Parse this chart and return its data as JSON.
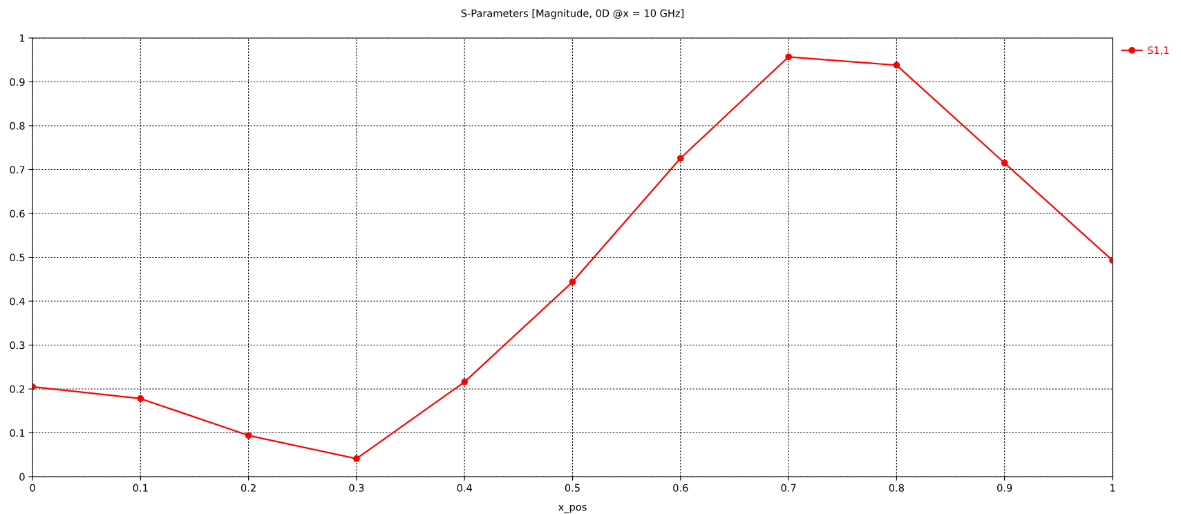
{
  "chart_data": {
    "type": "line",
    "title": "S-Parameters [Magnitude, 0D @x = 10 GHz]",
    "xlabel": "x_pos",
    "x": [
      0,
      0.1,
      0.2,
      0.3,
      0.4,
      0.5,
      0.6,
      0.7,
      0.8,
      0.9,
      1
    ],
    "series": [
      {
        "name": "S1,1",
        "color": "#ff0000",
        "values": [
          0.205,
          0.178,
          0.094,
          0.041,
          0.216,
          0.444,
          0.726,
          0.957,
          0.938,
          0.715,
          0.493
        ]
      }
    ],
    "xlim": [
      0,
      1
    ],
    "xticks": [
      0,
      0.1,
      0.2,
      0.3,
      0.4,
      0.5,
      0.6,
      0.7,
      0.8,
      0.9,
      1
    ],
    "ylim": [
      0,
      1
    ],
    "yticks": [
      0,
      0.1,
      0.2,
      0.3,
      0.4,
      0.5,
      0.6,
      0.7,
      0.8,
      0.9,
      1
    ],
    "grid": true,
    "legend": "top right",
    "marker": "circle",
    "line_style": "solid"
  }
}
